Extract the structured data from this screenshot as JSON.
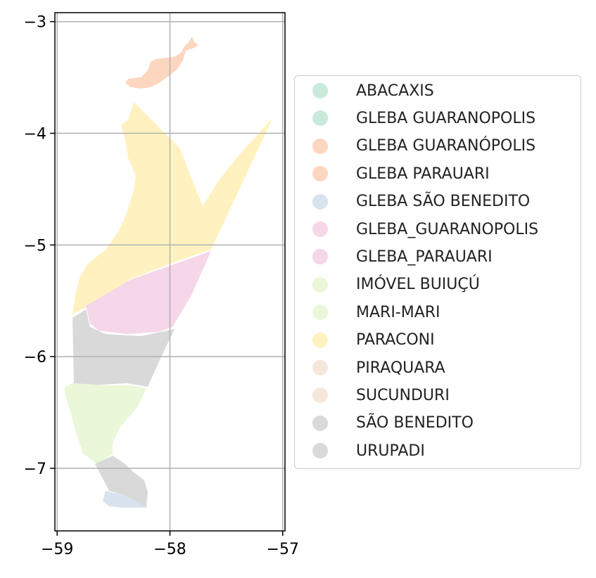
{
  "map": {
    "x_range": [
      -59.02,
      -56.98
    ],
    "y_range": [
      -7.56,
      -2.92
    ],
    "x_ticks": [
      {
        "value": -59,
        "label": "−59"
      },
      {
        "value": -58,
        "label": "−58"
      },
      {
        "value": -57,
        "label": "−57"
      }
    ],
    "y_ticks": [
      {
        "value": -3,
        "label": "−3"
      },
      {
        "value": -4,
        "label": "−4"
      },
      {
        "value": -5,
        "label": "−5"
      },
      {
        "value": -6,
        "label": "−6"
      },
      {
        "value": -7,
        "label": "−7"
      }
    ],
    "grid": true,
    "colors": {
      "paraconi": "#fff2c0",
      "gleba_parauari": "#f6d6e9",
      "sao_benedito": "#d9d9d9",
      "mari_mari": "#eaf7d9",
      "gleba_guaranopolis": "#fdd6bf",
      "gleba_sao_benedito": "#d9e2ef"
    }
  },
  "legend": {
    "placement": "right",
    "items": [
      {
        "label": "ABACAXIS",
        "color": "#c9e9db"
      },
      {
        "label": "GLEBA GUARANOPOLIS",
        "color": "#c9e9db"
      },
      {
        "label": "GLEBA GUARANÓPOLIS",
        "color": "#fdd6bf"
      },
      {
        "label": "GLEBA PARAUARI",
        "color": "#fdd6bf"
      },
      {
        "label": "GLEBA SÃO BENEDITO",
        "color": "#d9e2ef"
      },
      {
        "label": "GLEBA_GUARANOPOLIS",
        "color": "#f6d6e9"
      },
      {
        "label": "GLEBA_PARAUARI",
        "color": "#f6d6e9"
      },
      {
        "label": "IMÓVEL BUIUÇÚ",
        "color": "#eaf7d9"
      },
      {
        "label": "MARI-MARI",
        "color": "#eaf7d9"
      },
      {
        "label": "PARACONI",
        "color": "#fff2c0"
      },
      {
        "label": "PIRAQUARA",
        "color": "#f5e8da"
      },
      {
        "label": "SUCUNDURI",
        "color": "#f5e8da"
      },
      {
        "label": "SÃO BENEDITO",
        "color": "#d9d9d9"
      },
      {
        "label": "URUPADI",
        "color": "#d9d9d9"
      }
    ]
  }
}
